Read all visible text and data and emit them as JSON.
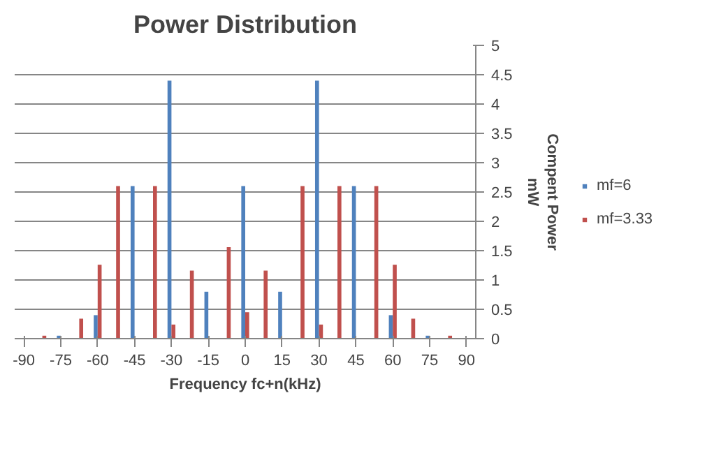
{
  "chart_data": {
    "type": "bar",
    "title": "Power Distribution",
    "xlabel": "Frequency fc+n(kHz)",
    "ylabel": "Compent Power\nmW",
    "xlim": [
      -93.75,
      93.75
    ],
    "xticks": [
      -90,
      -75,
      -60,
      -45,
      -30,
      -15,
      0,
      15,
      30,
      45,
      60,
      75,
      90
    ],
    "ylim": [
      0,
      5
    ],
    "yticks": [
      0,
      0.5,
      1,
      1.5,
      2,
      2.5,
      3,
      3.5,
      4,
      4.5,
      5
    ],
    "grid": "y",
    "legend": "right",
    "series": [
      {
        "name": "mf=6",
        "color": "#4f81bd",
        "x": [
          -75,
          -60,
          -45,
          -30,
          -15,
          0,
          15,
          30,
          45,
          60,
          75
        ],
        "values": [
          0.05,
          0.4,
          2.6,
          4.4,
          0.8,
          2.6,
          0.8,
          4.4,
          2.6,
          0.4,
          0.05
        ]
      },
      {
        "name": "mf=3.33",
        "color": "#c0504d",
        "x": [
          -82.5,
          -67.5,
          -60,
          -52.5,
          -37.5,
          -30,
          -22.5,
          -7.5,
          0,
          7.5,
          22.5,
          30,
          37.5,
          52.5,
          60,
          67.5,
          82.5
        ],
        "values": [
          0.05,
          0.34,
          1.26,
          2.6,
          2.6,
          0.24,
          1.16,
          1.56,
          0.45,
          1.16,
          2.6,
          0.24,
          2.6,
          2.6,
          1.26,
          0.34,
          0.05
        ]
      }
    ]
  }
}
